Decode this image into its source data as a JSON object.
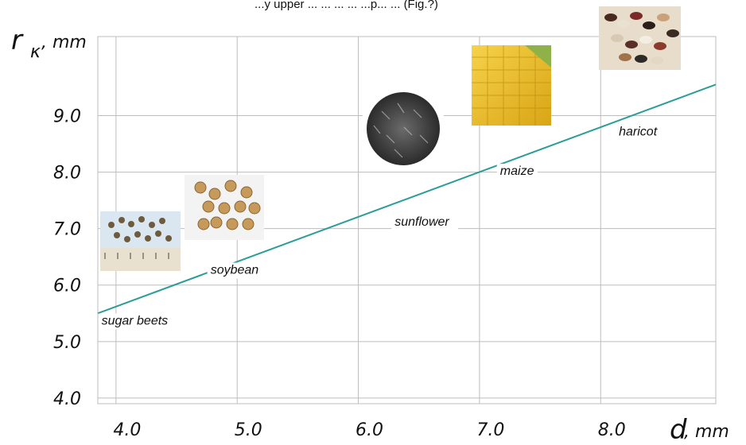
{
  "chart_data": {
    "type": "line",
    "top_note": "...y upper ... ... ... ... ...p... ... (Fig.?)",
    "xlabel": {
      "symbol": "d",
      "unit": ", mm"
    },
    "ylabel": {
      "symbol": "r",
      "subscript": "κ",
      "unit": ", mm"
    },
    "xlim": [
      3.85,
      8.95
    ],
    "ylim": [
      3.9,
      10.4
    ],
    "x_ticks": [
      "4.0",
      "5.0",
      "6.0",
      "7.0",
      "8.0"
    ],
    "y_ticks": [
      "4.0",
      "5.0",
      "6.0",
      "7.0",
      "8.0",
      "9.0"
    ],
    "grid": true,
    "line_color": "#2a9d99",
    "series": [
      {
        "x": [
          3.85,
          8.95
        ],
        "y": [
          5.5,
          9.55
        ]
      }
    ],
    "annotations": [
      {
        "label": "sugar beets",
        "x": 3.88,
        "y": 5.3,
        "photo": "sugar-beet-seeds"
      },
      {
        "label": "soybean",
        "x": 4.78,
        "y": 6.2,
        "photo": "soybeans"
      },
      {
        "label": "sunflower",
        "x": 6.3,
        "y": 7.05,
        "photo": "sunflower-seeds"
      },
      {
        "label": "maize",
        "x": 7.17,
        "y": 7.95,
        "photo": "maize-cob"
      },
      {
        "label": "haricot",
        "x": 8.15,
        "y": 8.65,
        "photo": "haricot-beans"
      }
    ]
  }
}
